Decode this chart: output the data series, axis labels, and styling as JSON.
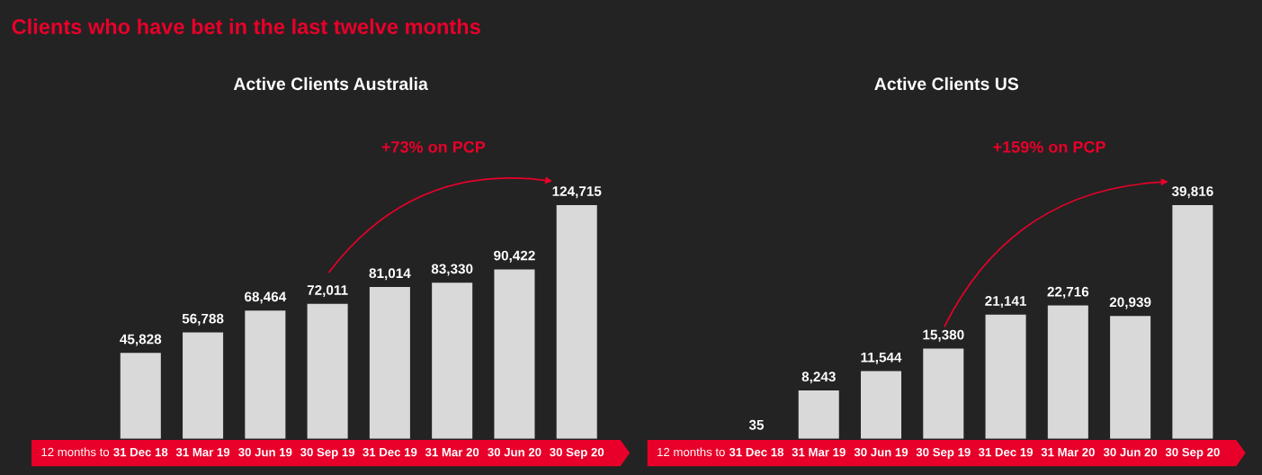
{
  "chart_data": [
    {
      "type": "bar",
      "title": "Clients who have bet in the last twelve months",
      "subtitle": "Active Clients Australia",
      "xlabel": "12 months to",
      "categories": [
        "31 Dec 18",
        "31 Mar 19",
        "30 Jun 19",
        "30 Sep 19",
        "31 Dec 19",
        "31 Mar 20",
        "30 Jun 20",
        "30 Sep 20"
      ],
      "values": [
        45828,
        56788,
        68464,
        72011,
        81014,
        83330,
        90422,
        124715
      ],
      "color": "#d9d9d9",
      "value_labels": [
        "45,828",
        "56,788",
        "68,464",
        "72,011",
        "81,014",
        "83,330",
        "90,422",
        "124,715"
      ],
      "annotations": [
        "+73% on PCP"
      ]
    },
    {
      "type": "bar",
      "subtitle": "Active Clients US",
      "xlabel": "12 months to",
      "categories": [
        "31 Dec 18",
        "31 Mar 19",
        "30 Jun 19",
        "30 Sep 19",
        "31 Dec 19",
        "31 Mar 20",
        "30 Jun 20",
        "30 Sep 20"
      ],
      "values": [
        35,
        8243,
        11544,
        15380,
        21141,
        22716,
        20939,
        39816
      ],
      "color": "#d9d9d9",
      "value_labels": [
        "35",
        "8,243",
        "11,544",
        "15,380",
        "21,141",
        "22,716",
        "20,939",
        "39,816"
      ],
      "annotations": [
        "+159% on PCP"
      ]
    }
  ]
}
